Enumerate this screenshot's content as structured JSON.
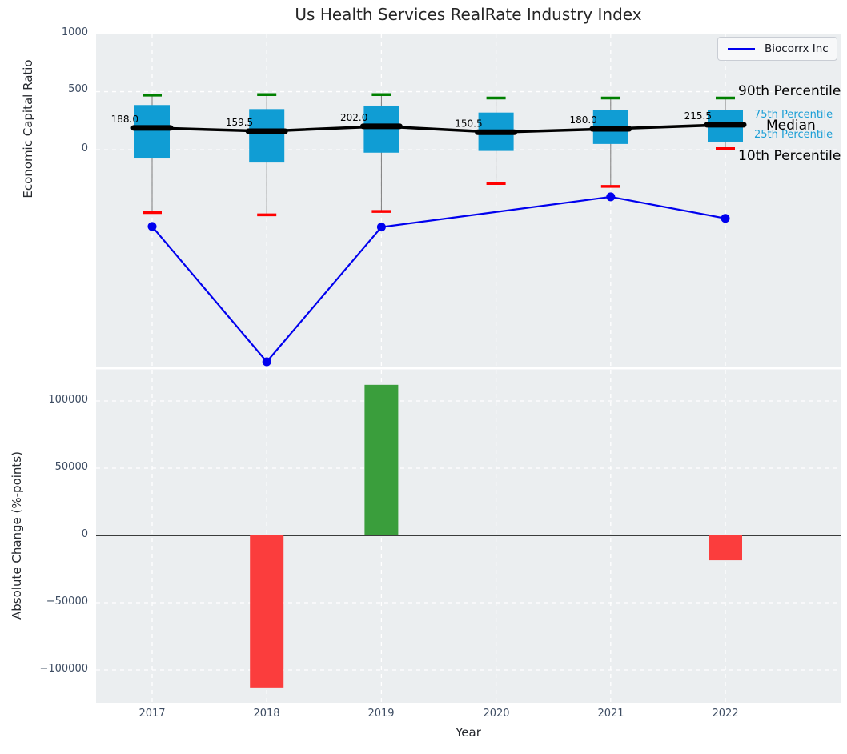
{
  "title": "Us Health Services RealRate Industry Index",
  "legend": {
    "label": "Biocorrx Inc"
  },
  "annotations": {
    "p90": "90th Percentile",
    "p75": "75th Percentile",
    "median": "Median",
    "p25": "25th Percentile",
    "p10": "10th Percentile"
  },
  "axes": {
    "top_yticks": [
      "1000",
      "500",
      "0"
    ],
    "bottom_yticks": [
      "100000",
      "50000",
      "0",
      "−50000",
      "−100000"
    ],
    "x_ticks": [
      "2017",
      "2018",
      "2019",
      "2020",
      "2021",
      "2022"
    ],
    "ylabel_top": "Economic Capital Ratio",
    "ylabel_bottom": "Absolute Change (%-points)",
    "xlabel": "Year"
  },
  "colors": {
    "plot_bg": "#ebeef0",
    "grid": "#ffffff",
    "box": "#109dd4",
    "whisker": "#7a7a7a",
    "cap_high": "#008000",
    "cap_low": "#ff0000",
    "median": "#000000",
    "line": "#0000ee",
    "bar_positive": "#3a9e3c",
    "bar_negative": "#fb3d3d",
    "zero_line": "#000000"
  },
  "chart_data": [
    {
      "type": "boxplot+line",
      "title": "Us Health Services RealRate Industry Index",
      "ylabel": "Economic Capital Ratio",
      "categories": [
        "2017",
        "2018",
        "2019",
        "2020",
        "2021",
        "2022"
      ],
      "ytick_values": [
        0,
        500,
        1000
      ],
      "ylim": [
        -1880,
        1000
      ],
      "grid": true,
      "legend_position": "top-right",
      "boxes": [
        {
          "year": "2017",
          "p90": 470,
          "p75": 385,
          "median": 188.0,
          "p25": -75,
          "p10": -540,
          "median_label": "188.0"
        },
        {
          "year": "2018",
          "p90": 475,
          "p75": 350,
          "median": 159.5,
          "p25": -110,
          "p10": -560,
          "median_label": "159.5"
        },
        {
          "year": "2019",
          "p90": 475,
          "p75": 380,
          "median": 202.0,
          "p25": -25,
          "p10": -530,
          "median_label": "202.0"
        },
        {
          "year": "2020",
          "p90": 445,
          "p75": 320,
          "median": 150.5,
          "p25": -10,
          "p10": -290,
          "median_label": "150.5"
        },
        {
          "year": "2021",
          "p90": 445,
          "p75": 340,
          "median": 180.0,
          "p25": 50,
          "p10": -315,
          "median_label": "180.0"
        },
        {
          "year": "2022",
          "p90": 445,
          "p75": 345,
          "median": 215.5,
          "p25": 70,
          "p10": 10,
          "median_label": "215.5"
        }
      ],
      "line_series": {
        "name": "Biocorrx Inc",
        "values": [
          -660,
          -1825,
          -665,
          null,
          -405,
          -590
        ]
      }
    },
    {
      "type": "bar",
      "ylabel": "Absolute Change (%-points)",
      "xlabel": "Year",
      "categories": [
        "2017",
        "2018",
        "2019",
        "2020",
        "2021",
        "2022"
      ],
      "values": [
        0,
        -113000,
        112000,
        0,
        0,
        -18500
      ],
      "ytick_values": [
        -100000,
        -50000,
        0,
        50000,
        100000
      ],
      "ylim": [
        -124400,
        124400
      ],
      "grid": true
    }
  ]
}
